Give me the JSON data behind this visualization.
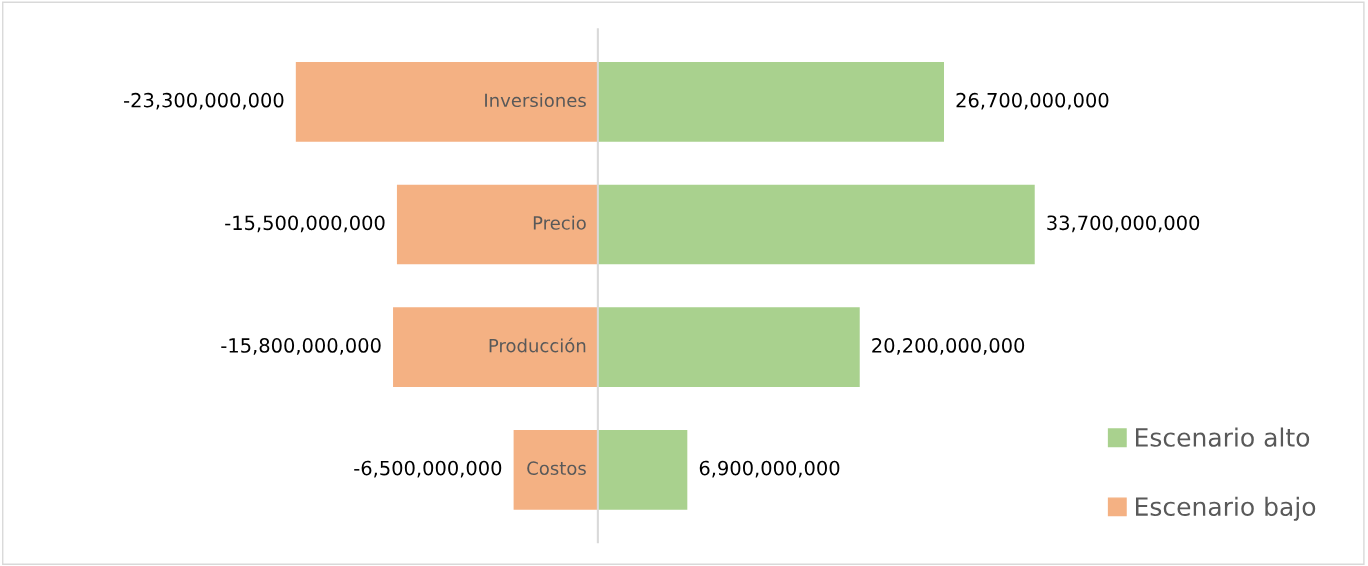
{
  "chart_data": {
    "type": "bar",
    "orientation": "horizontal",
    "categories": [
      "Inversiones",
      "Precio",
      "Producción",
      "Costos"
    ],
    "series": [
      {
        "name": "Escenario alto",
        "color": "#a9d18e",
        "values": [
          26700000000,
          33700000000,
          20200000000,
          6900000000
        ],
        "value_labels": [
          "26,700,000,000",
          "33,700,000,000",
          "20,200,000,000",
          "6,900,000,000"
        ]
      },
      {
        "name": "Escenario bajo",
        "color": "#f4b183",
        "values": [
          -23300000000,
          -15500000000,
          -15800000000,
          -6500000000
        ],
        "value_labels": [
          "-23,300,000,000",
          "-15,500,000,000",
          "-15,800,000,000",
          "-6,500,000,000"
        ]
      }
    ],
    "legend": "bottom right",
    "stacked": true
  }
}
